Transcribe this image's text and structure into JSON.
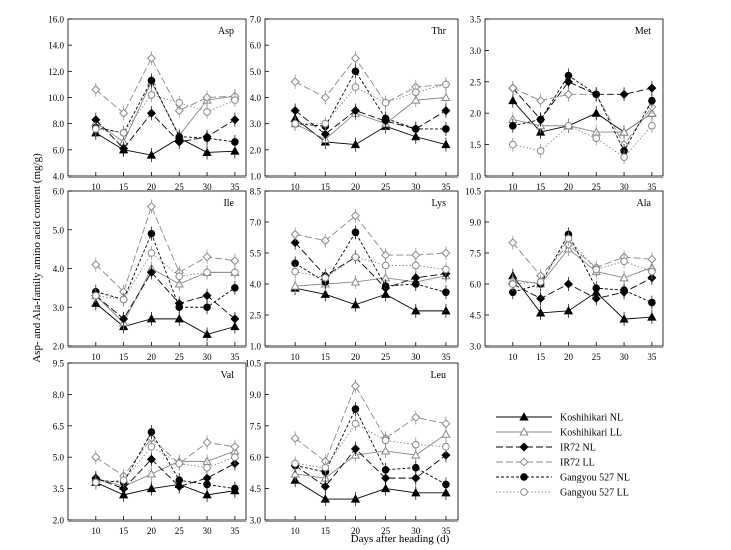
{
  "figure": {
    "ylabel": "Asp- and Ala-family amino acid content (mg/g)",
    "xlabel": "Days after heading (d)"
  },
  "legend": [
    {
      "label": "Koshihikari NL",
      "color": "#000000",
      "dash": "solid",
      "marker": "triangle",
      "fill": "filled"
    },
    {
      "label": "Koshihikari LL",
      "color": "#888888",
      "dash": "solid",
      "marker": "triangle",
      "fill": "open"
    },
    {
      "label": "IR72 NL",
      "color": "#000000",
      "dash": "longdash",
      "marker": "diamond",
      "fill": "filled"
    },
    {
      "label": "IR72 LL",
      "color": "#888888",
      "dash": "longdash",
      "marker": "diamond",
      "fill": "open"
    },
    {
      "label": "Gangyou 527 NL",
      "color": "#000000",
      "dash": "shortdash",
      "marker": "circle",
      "fill": "filled"
    },
    {
      "label": "Gangyou 527 LL",
      "color": "#888888",
      "dash": "dot",
      "marker": "circle",
      "fill": "open"
    }
  ],
  "chart_data": [
    {
      "type": "line",
      "title": "Asp",
      "x": [
        10,
        15,
        20,
        25,
        30,
        35
      ],
      "ylim": [
        4.0,
        16.0
      ],
      "yticks": [
        "4.0",
        "6.0",
        "8.0",
        "10.0",
        "12.0",
        "14.0",
        "16.0"
      ],
      "xticks": [
        "10",
        "15",
        "20",
        "25",
        "30",
        "35"
      ],
      "series": [
        {
          "name": "Koshihikari NL",
          "values": [
            7.3,
            6.0,
            5.6,
            6.9,
            5.8,
            5.9
          ]
        },
        {
          "name": "Koshihikari LL",
          "values": [
            8.1,
            6.6,
            11.2,
            7.1,
            9.8,
            10.1
          ]
        },
        {
          "name": "IR72 NL",
          "values": [
            8.3,
            6.1,
            8.8,
            6.6,
            7.0,
            8.3
          ]
        },
        {
          "name": "IR72 LL",
          "values": [
            10.6,
            8.8,
            13.0,
            9.0,
            10.0,
            10.1
          ]
        },
        {
          "name": "Gangyou 527 NL",
          "values": [
            7.7,
            7.3,
            11.3,
            7.0,
            6.9,
            6.6
          ]
        },
        {
          "name": "Gangyou 527 LL",
          "values": [
            7.6,
            7.3,
            10.2,
            9.6,
            8.9,
            9.8
          ]
        }
      ]
    },
    {
      "type": "line",
      "title": "Thr",
      "x": [
        10,
        15,
        20,
        25,
        30,
        35
      ],
      "ylim": [
        1.0,
        7.0
      ],
      "yticks": [
        "1.0",
        "2.0",
        "3.0",
        "4.0",
        "5.0",
        "6.0",
        "7.0"
      ],
      "xticks": [
        "10",
        "15",
        "20",
        "25",
        "30",
        "35"
      ],
      "series": [
        {
          "name": "Koshihikari NL",
          "values": [
            3.2,
            2.3,
            2.2,
            2.9,
            2.5,
            2.2
          ]
        },
        {
          "name": "Koshihikari LL",
          "values": [
            3.0,
            2.4,
            3.4,
            3.0,
            3.9,
            4.0
          ]
        },
        {
          "name": "IR72 NL",
          "values": [
            3.5,
            2.6,
            3.5,
            3.1,
            2.8,
            3.5
          ]
        },
        {
          "name": "IR72 LL",
          "values": [
            4.6,
            4.0,
            5.5,
            3.8,
            4.4,
            4.5
          ]
        },
        {
          "name": "Gangyou 527 NL",
          "values": [
            3.0,
            2.9,
            5.0,
            3.2,
            2.8,
            2.8
          ]
        },
        {
          "name": "Gangyou 527 LL",
          "values": [
            3.0,
            3.0,
            4.4,
            3.8,
            4.2,
            4.5
          ]
        }
      ]
    },
    {
      "type": "line",
      "title": "Met",
      "x": [
        10,
        15,
        20,
        25,
        30,
        35
      ],
      "ylim": [
        1.0,
        3.5
      ],
      "yticks": [
        "1.0",
        "1.5",
        "2.0",
        "2.5",
        "3.0",
        "3.5"
      ],
      "xticks": [
        "10",
        "15",
        "20",
        "25",
        "30",
        "35"
      ],
      "series": [
        {
          "name": "Koshihikari NL",
          "values": [
            2.2,
            1.7,
            1.8,
            2.0,
            1.7,
            2.0
          ]
        },
        {
          "name": "Koshihikari LL",
          "values": [
            1.9,
            1.8,
            1.8,
            1.7,
            1.7,
            2.0
          ]
        },
        {
          "name": "IR72 NL",
          "values": [
            2.4,
            1.9,
            2.5,
            2.3,
            2.3,
            2.4
          ]
        },
        {
          "name": "IR72 LL",
          "values": [
            2.4,
            2.2,
            2.3,
            2.3,
            1.5,
            2.1
          ]
        },
        {
          "name": "Gangyou 527 NL",
          "values": [
            1.8,
            1.9,
            2.6,
            2.3,
            1.4,
            2.2
          ]
        },
        {
          "name": "Gangyou 527 LL",
          "values": [
            1.5,
            1.4,
            1.8,
            1.6,
            1.3,
            1.8
          ]
        }
      ]
    },
    {
      "type": "line",
      "title": "Ile",
      "x": [
        10,
        15,
        20,
        25,
        30,
        35
      ],
      "ylim": [
        2.0,
        6.0
      ],
      "yticks": [
        "2.0",
        "3.0",
        "4.0",
        "5.0",
        "6.0"
      ],
      "xticks": [
        "10",
        "15",
        "20",
        "25",
        "30",
        "35"
      ],
      "series": [
        {
          "name": "Koshihikari NL",
          "values": [
            3.1,
            2.5,
            2.7,
            2.7,
            2.3,
            2.5
          ]
        },
        {
          "name": "Koshihikari LL",
          "values": [
            3.3,
            2.6,
            4.0,
            3.6,
            3.9,
            3.9
          ]
        },
        {
          "name": "IR72 NL",
          "values": [
            3.3,
            2.7,
            3.9,
            3.1,
            3.3,
            2.7
          ]
        },
        {
          "name": "IR72 LL",
          "values": [
            4.1,
            3.4,
            5.6,
            3.9,
            4.3,
            4.2
          ]
        },
        {
          "name": "Gangyou 527 NL",
          "values": [
            3.4,
            3.2,
            4.9,
            3.0,
            3.0,
            3.5
          ]
        },
        {
          "name": "Gangyou 527 LL",
          "values": [
            3.3,
            3.2,
            4.4,
            3.8,
            3.9,
            3.9
          ]
        }
      ]
    },
    {
      "type": "line",
      "title": "Lys",
      "x": [
        10,
        15,
        20,
        25,
        30,
        35
      ],
      "ylim": [
        1.0,
        8.5
      ],
      "yticks": [
        "1.0",
        "2.5",
        "4.0",
        "5.5",
        "7.0",
        "8.5"
      ],
      "xticks": [
        "10",
        "15",
        "20",
        "25",
        "30",
        "35"
      ],
      "series": [
        {
          "name": "Koshihikari NL",
          "values": [
            3.8,
            3.5,
            3.0,
            3.5,
            2.7,
            2.7
          ]
        },
        {
          "name": "Koshihikari LL",
          "values": [
            3.9,
            4.0,
            4.1,
            4.3,
            4.1,
            4.4
          ]
        },
        {
          "name": "IR72 NL",
          "values": [
            6.0,
            4.4,
            5.3,
            3.8,
            4.3,
            4.5
          ]
        },
        {
          "name": "IR72 LL",
          "values": [
            6.4,
            6.1,
            7.3,
            5.4,
            5.4,
            5.5
          ]
        },
        {
          "name": "Gangyou 527 NL",
          "values": [
            5.0,
            4.1,
            6.5,
            3.9,
            4.0,
            3.6
          ]
        },
        {
          "name": "Gangyou 527 LL",
          "values": [
            4.6,
            4.3,
            5.3,
            4.9,
            4.9,
            4.7
          ]
        }
      ]
    },
    {
      "type": "line",
      "title": "Ala",
      "x": [
        10,
        15,
        20,
        25,
        30,
        35
      ],
      "ylim": [
        3.0,
        10.5
      ],
      "yticks": [
        "3.0",
        "4.5",
        "6.0",
        "7.5",
        "9.0",
        "10.5"
      ],
      "xticks": [
        "10",
        "15",
        "20",
        "25",
        "30",
        "35"
      ],
      "series": [
        {
          "name": "Koshihikari NL",
          "values": [
            6.4,
            4.6,
            4.7,
            5.6,
            4.3,
            4.4
          ]
        },
        {
          "name": "Koshihikari LL",
          "values": [
            6.2,
            6.0,
            7.7,
            6.6,
            6.3,
            6.8
          ]
        },
        {
          "name": "IR72 NL",
          "values": [
            6.0,
            5.3,
            6.0,
            5.3,
            5.6,
            6.3
          ]
        },
        {
          "name": "IR72 LL",
          "values": [
            8.0,
            6.4,
            7.9,
            6.8,
            7.3,
            7.2
          ]
        },
        {
          "name": "Gangyou 527 NL",
          "values": [
            5.6,
            6.0,
            8.4,
            5.8,
            5.7,
            5.1
          ]
        },
        {
          "name": "Gangyou 527 LL",
          "values": [
            6.0,
            6.1,
            8.2,
            6.7,
            7.1,
            6.6
          ]
        }
      ]
    },
    {
      "type": "line",
      "title": "Val",
      "x": [
        10,
        15,
        20,
        25,
        30,
        35
      ],
      "ylim": [
        2.0,
        9.5
      ],
      "yticks": [
        "2.0",
        "3.5",
        "5.0",
        "6.5",
        "8.0",
        "9.5"
      ],
      "xticks": [
        "10",
        "15",
        "20",
        "25",
        "30",
        "35"
      ],
      "series": [
        {
          "name": "Koshihikari NL",
          "values": [
            3.8,
            3.2,
            3.5,
            3.7,
            3.2,
            3.4
          ]
        },
        {
          "name": "Koshihikari LL",
          "values": [
            4.0,
            3.6,
            4.2,
            4.8,
            4.8,
            5.3
          ]
        },
        {
          "name": "IR72 NL",
          "values": [
            4.0,
            3.5,
            4.9,
            3.6,
            4.0,
            4.7
          ]
        },
        {
          "name": "IR72 LL",
          "values": [
            5.0,
            4.1,
            5.9,
            4.7,
            5.7,
            5.5
          ]
        },
        {
          "name": "Gangyou 527 NL",
          "values": [
            3.9,
            3.8,
            6.2,
            3.9,
            3.7,
            3.5
          ]
        },
        {
          "name": "Gangyou 527 LL",
          "values": [
            3.8,
            3.9,
            5.5,
            4.7,
            4.5,
            5.0
          ]
        }
      ]
    },
    {
      "type": "line",
      "title": "Leu",
      "x": [
        10,
        15,
        20,
        25,
        30,
        35
      ],
      "ylim": [
        3.0,
        10.5
      ],
      "yticks": [
        "3.0",
        "4.5",
        "6.0",
        "7.5",
        "9.0",
        "10.5"
      ],
      "xticks": [
        "10",
        "15",
        "20",
        "25",
        "30",
        "35"
      ],
      "series": [
        {
          "name": "Koshihikari NL",
          "values": [
            4.9,
            4.0,
            4.0,
            4.5,
            4.3,
            4.3
          ]
        },
        {
          "name": "Koshihikari LL",
          "values": [
            5.2,
            5.0,
            6.1,
            6.3,
            6.1,
            7.1
          ]
        },
        {
          "name": "IR72 NL",
          "values": [
            5.6,
            4.6,
            6.4,
            5.0,
            5.0,
            6.1
          ]
        },
        {
          "name": "IR72 LL",
          "values": [
            6.9,
            5.8,
            9.4,
            6.9,
            7.9,
            7.6
          ]
        },
        {
          "name": "Gangyou 527 NL",
          "values": [
            5.6,
            5.3,
            8.3,
            5.4,
            5.5,
            4.7
          ]
        },
        {
          "name": "Gangyou 527 LL",
          "values": [
            5.7,
            5.5,
            7.6,
            6.8,
            6.6,
            6.5
          ]
        }
      ]
    }
  ]
}
